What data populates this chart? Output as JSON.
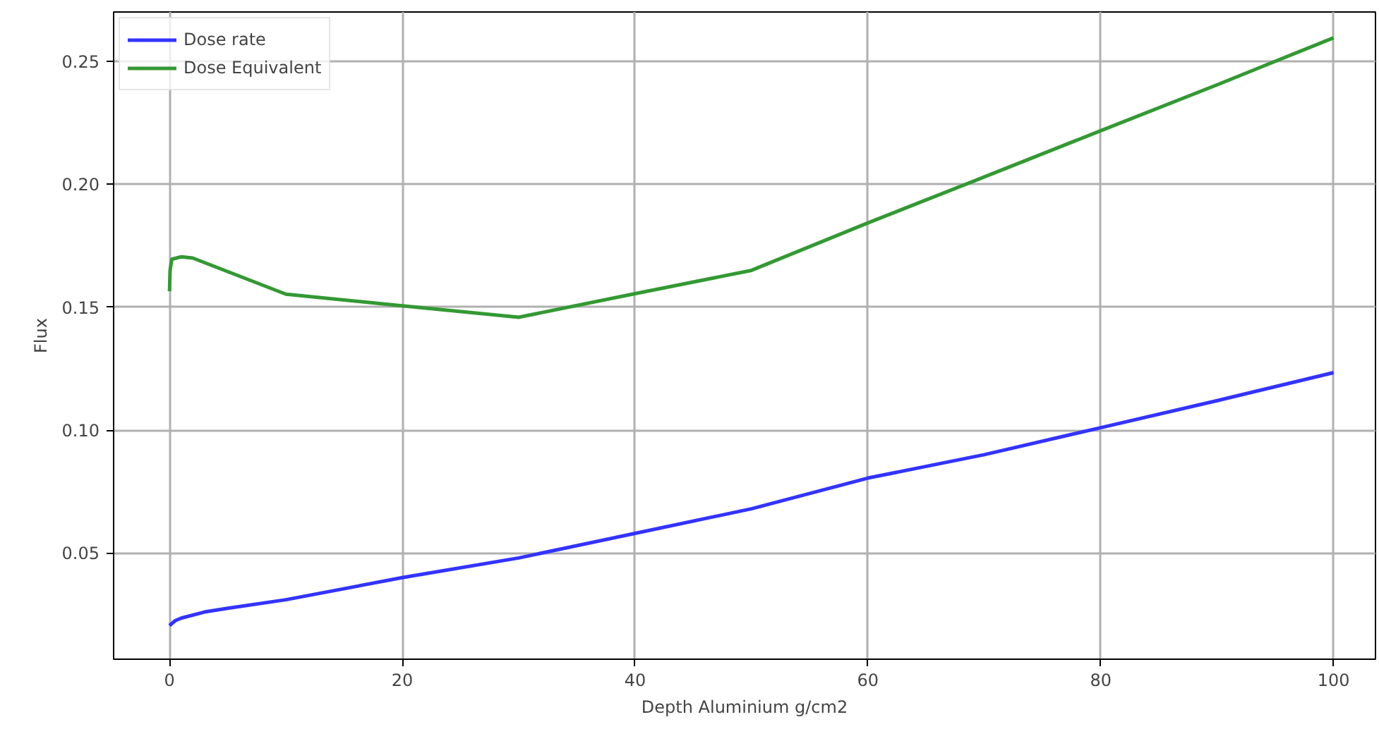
{
  "chart_data": {
    "type": "line",
    "xlabel": "Depth Aluminium g/cm2",
    "ylabel": "Flux",
    "xlim": [
      -4.8,
      103.6
    ],
    "ylim": [
      0.0068,
      0.2701
    ],
    "xticks": [
      0,
      20,
      40,
      60,
      80,
      100
    ],
    "yticks": [
      0.05,
      {
        "value": 0.1,
        "label": "0.10"
      },
      0.15,
      {
        "value": 0.2,
        "label": "0.20"
      },
      0.25
    ],
    "grid": true,
    "legend": "top left",
    "line_style": "solid",
    "series": [
      {
        "name": "Dose rate",
        "color": "#3333ff",
        "x": [
          0,
          0.5,
          1,
          3,
          5,
          10,
          20,
          30,
          40,
          50,
          60,
          70,
          80,
          90,
          100
        ],
        "values": [
          0.0205,
          0.0225,
          0.0235,
          0.026,
          0.0275,
          0.031,
          0.04,
          0.048,
          0.058,
          0.068,
          0.0805,
          0.09,
          0.101,
          0.112,
          0.1234
        ]
      },
      {
        "name": "Dose Equivalent",
        "color": "#339933",
        "x": [
          0,
          0.05,
          0.2,
          1,
          2,
          10,
          20,
          30,
          40,
          50,
          60,
          70,
          80,
          90,
          100
        ],
        "values": [
          0.1565,
          0.165,
          0.1695,
          0.1705,
          0.17,
          0.1553,
          0.1506,
          0.1459,
          0.1555,
          0.165,
          0.1843,
          0.203,
          0.2218,
          0.2405,
          0.2596
        ]
      }
    ]
  }
}
